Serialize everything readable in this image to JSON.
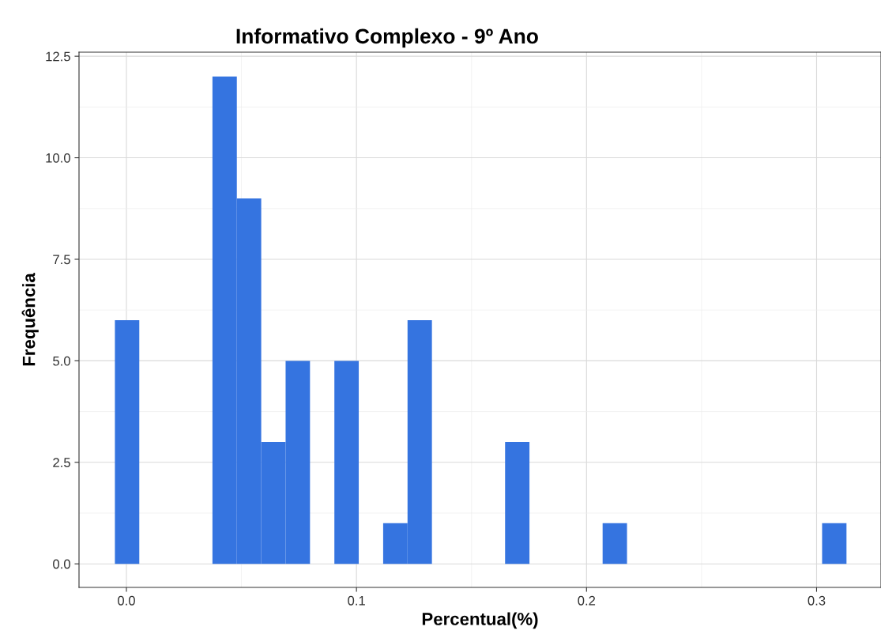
{
  "chart_data": {
    "type": "histogram",
    "title": "Informativo Complexo - 9º Ano",
    "xlabel": "Percentual(%)",
    "ylabel": "Frequência",
    "bins": [
      -0.005,
      0.0056,
      0.0162,
      0.0268,
      0.0374,
      0.048,
      0.0586,
      0.0692,
      0.0798,
      0.0904,
      0.101,
      0.1116,
      0.1222,
      0.1328,
      0.1434,
      0.154,
      0.1646,
      0.1752,
      0.1858,
      0.1964,
      0.207,
      0.2176,
      0.2282,
      0.2388,
      0.2494,
      0.26,
      0.2706,
      0.2812,
      0.2918,
      0.3024,
      0.313
    ],
    "values": [
      6,
      0,
      0,
      0,
      12,
      9,
      3,
      5,
      0,
      5,
      0,
      1,
      6,
      0,
      0,
      0,
      3,
      0,
      0,
      0,
      1,
      0,
      0,
      0,
      0,
      0,
      0,
      0,
      0,
      1
    ],
    "color": "#3574e0",
    "xlim": [
      -0.0206,
      0.328
    ],
    "ylim": [
      -0.58,
      12.6
    ],
    "xticks": [
      {
        "value": 0,
        "label": "0.0"
      },
      {
        "value": 0.1,
        "label": "0.1"
      },
      {
        "value": 0.2,
        "label": "0.2"
      },
      {
        "value": 0.3,
        "label": "0.3"
      }
    ],
    "yticks": [
      {
        "value": 0,
        "label": "0.0"
      },
      {
        "value": 2.5,
        "label": "2.5"
      },
      {
        "value": 5,
        "label": "5.0"
      },
      {
        "value": 7.5,
        "label": "7.5"
      },
      {
        "value": 10,
        "label": "10.0"
      },
      {
        "value": 12.5,
        "label": "12.5"
      }
    ],
    "grid": true
  }
}
